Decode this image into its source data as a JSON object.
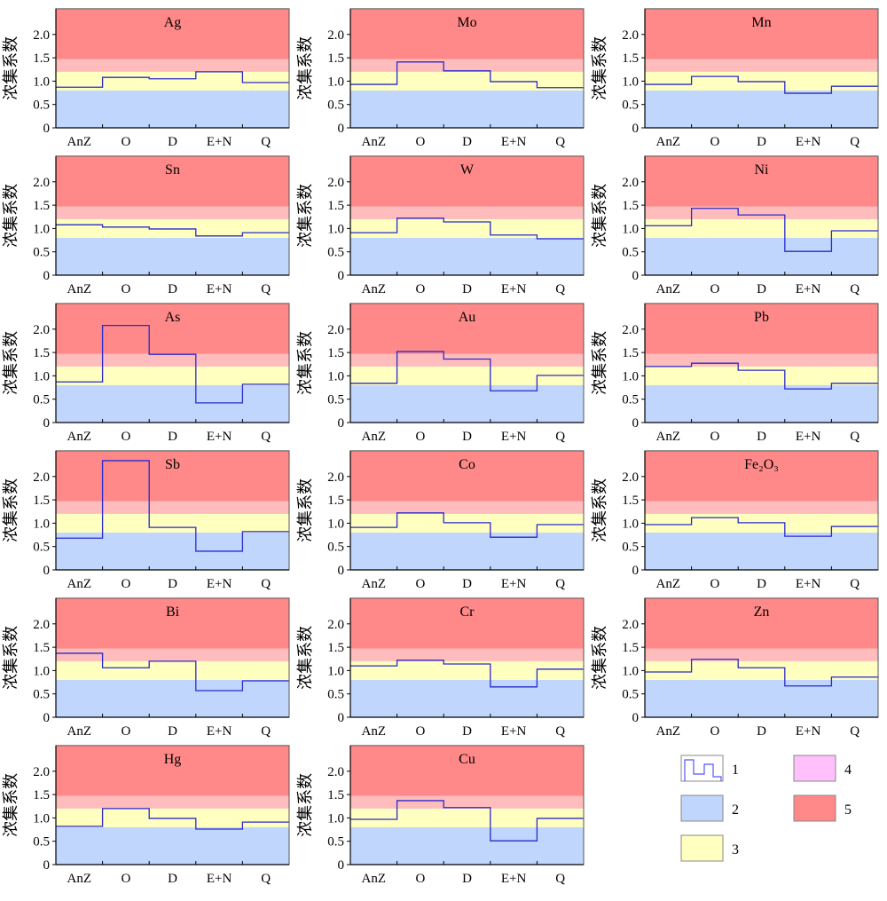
{
  "chart_data": {
    "type": "line",
    "step": true,
    "ylabel": "浓集系数",
    "categories": [
      "AnZ",
      "O",
      "D",
      "E+N",
      "Q"
    ],
    "yticks": [
      "0",
      "0.5",
      "1.0",
      "1.5",
      "2.0"
    ],
    "ytick_values": [
      0,
      0.5,
      1.0,
      1.5,
      2.0
    ],
    "ylim": [
      0,
      2.55
    ],
    "bands": [
      {
        "from": 0,
        "to": 0.8,
        "color": "#c0d6fc"
      },
      {
        "from": 0.8,
        "to": 1.2,
        "color": "#ffffc0"
      },
      {
        "from": 1.2,
        "to": 1.47,
        "color": "#ffbcbc"
      },
      {
        "from": 1.47,
        "to": 2.55,
        "color": "#ff8888"
      }
    ],
    "line_color": "#2a2acc",
    "panels": [
      {
        "title": "Ag",
        "values": [
          0.87,
          1.08,
          1.05,
          1.2,
          0.97
        ]
      },
      {
        "title": "Mo",
        "values": [
          0.93,
          1.41,
          1.22,
          0.99,
          0.86
        ]
      },
      {
        "title": "Mn",
        "values": [
          0.93,
          1.1,
          0.99,
          0.74,
          0.89
        ]
      },
      {
        "title": "Sn",
        "values": [
          1.08,
          1.03,
          0.99,
          0.84,
          0.91
        ]
      },
      {
        "title": "W",
        "values": [
          0.91,
          1.22,
          1.14,
          0.86,
          0.78
        ]
      },
      {
        "title": "Ni",
        "values": [
          1.06,
          1.43,
          1.29,
          0.51,
          0.95
        ]
      },
      {
        "title": "As",
        "values": [
          0.87,
          2.08,
          1.46,
          0.42,
          0.82
        ]
      },
      {
        "title": "Au",
        "values": [
          0.84,
          1.52,
          1.36,
          0.68,
          1.01
        ]
      },
      {
        "title": "Pb",
        "values": [
          1.2,
          1.27,
          1.12,
          0.72,
          0.84
        ]
      },
      {
        "title": "Sb",
        "values": [
          0.68,
          2.34,
          0.91,
          0.4,
          0.82
        ]
      },
      {
        "title": "Co",
        "values": [
          0.91,
          1.22,
          1.01,
          0.7,
          0.97
        ]
      },
      {
        "title": "Fe₂O₃",
        "values": [
          0.97,
          1.12,
          1.01,
          0.72,
          0.93
        ]
      },
      {
        "title": "Bi",
        "values": [
          1.37,
          1.06,
          1.2,
          0.57,
          0.78
        ]
      },
      {
        "title": "Cr",
        "values": [
          1.1,
          1.22,
          1.14,
          0.65,
          1.03
        ]
      },
      {
        "title": "Zn",
        "values": [
          0.97,
          1.24,
          1.06,
          0.67,
          0.86
        ]
      },
      {
        "title": "Hg",
        "values": [
          0.82,
          1.2,
          0.99,
          0.76,
          0.91
        ]
      },
      {
        "title": "Cu",
        "values": [
          0.97,
          1.37,
          1.22,
          0.51,
          0.99
        ]
      }
    ],
    "legend": [
      {
        "label": "1",
        "kind": "line"
      },
      {
        "label": "2",
        "color": "#c0d6fc"
      },
      {
        "label": "3",
        "color": "#ffffc0"
      },
      {
        "label": "4",
        "color": "#ffc0fc"
      },
      {
        "label": "5",
        "color": "#ff8888"
      }
    ],
    "legend_position": "bottom-right"
  }
}
